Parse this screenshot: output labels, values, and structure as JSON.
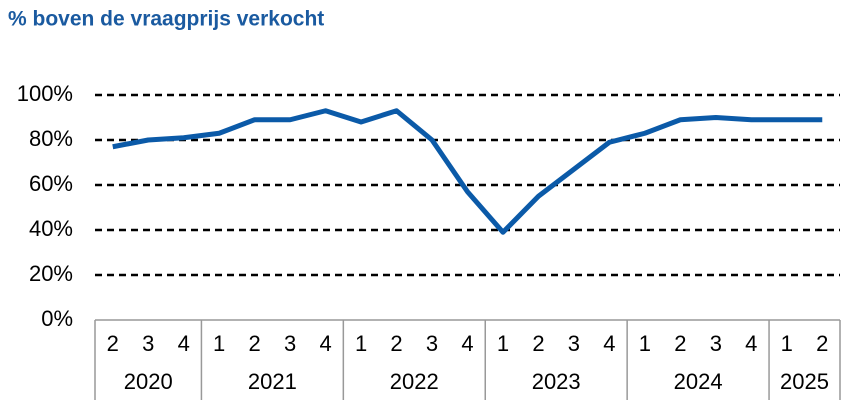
{
  "chart_data": {
    "type": "line",
    "title": "% boven de vraagprijs verkocht",
    "categories": [
      "2",
      "3",
      "4",
      "1",
      "2",
      "3",
      "4",
      "1",
      "2",
      "3",
      "4",
      "1",
      "2",
      "3",
      "4",
      "1",
      "2",
      "3",
      "4",
      "1",
      "2"
    ],
    "years": [
      "2020",
      "2021",
      "2022",
      "2023",
      "2024",
      "2025"
    ],
    "series": [
      {
        "name": "% boven de vraagprijs verkocht",
        "color": "#0b5aa8",
        "values": [
          77,
          80,
          81,
          83,
          89,
          89,
          93,
          88,
          93,
          80,
          57,
          39,
          55,
          67,
          79,
          83,
          89,
          90,
          89,
          89,
          89
        ]
      }
    ],
    "ylim": [
      0,
      100
    ],
    "yticks": [
      {
        "value": 0,
        "label": "0%"
      },
      {
        "value": 20,
        "label": "20%"
      },
      {
        "value": 40,
        "label": "40%"
      },
      {
        "value": 60,
        "label": "60%"
      },
      {
        "value": 80,
        "label": "80%"
      },
      {
        "value": 100,
        "label": "100%"
      }
    ],
    "grid": true
  }
}
